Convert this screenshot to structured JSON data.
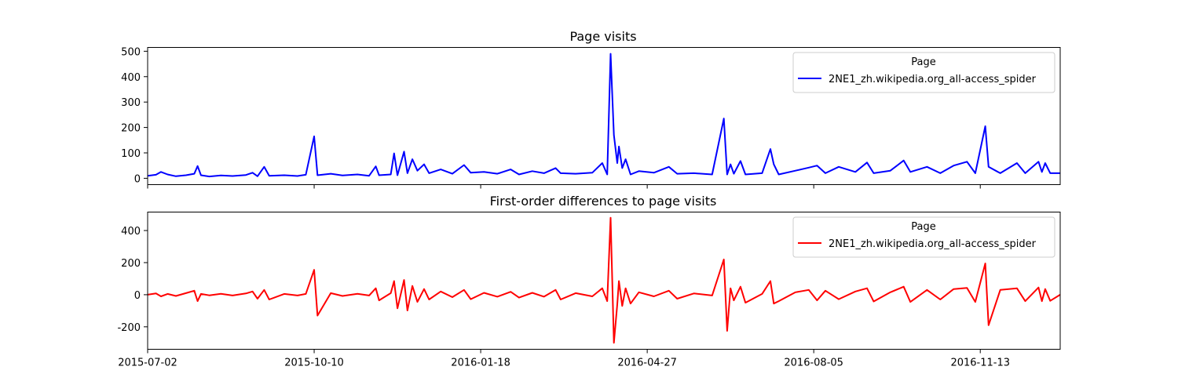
{
  "chart_data": [
    {
      "type": "line",
      "title": "Page visits",
      "x_range": [
        "2015-07-02",
        "2016-12-31"
      ],
      "ylim": [
        -25,
        515
      ],
      "yticks": [
        0,
        100,
        200,
        300,
        400,
        500
      ],
      "grid": false,
      "legend": {
        "title": "Page",
        "placement": "top-right"
      },
      "series": [
        {
          "name": "2NE1_zh.wikipedia.org_all-access_spider",
          "color": "#0000ff",
          "points": [
            [
              "2015-07-02",
              10
            ],
            [
              "2015-07-07",
              14
            ],
            [
              "2015-07-10",
              25
            ],
            [
              "2015-07-14",
              15
            ],
            [
              "2015-07-19",
              8
            ],
            [
              "2015-07-25",
              12
            ],
            [
              "2015-07-30",
              18
            ],
            [
              "2015-08-01",
              48
            ],
            [
              "2015-08-03",
              12
            ],
            [
              "2015-08-08",
              7
            ],
            [
              "2015-08-15",
              11
            ],
            [
              "2015-08-22",
              9
            ],
            [
              "2015-08-30",
              13
            ],
            [
              "2015-09-03",
              22
            ],
            [
              "2015-09-06",
              8
            ],
            [
              "2015-09-10",
              45
            ],
            [
              "2015-09-13",
              10
            ],
            [
              "2015-09-22",
              12
            ],
            [
              "2015-09-30",
              9
            ],
            [
              "2015-10-05",
              14
            ],
            [
              "2015-10-10",
              165
            ],
            [
              "2015-10-12",
              12
            ],
            [
              "2015-10-20",
              18
            ],
            [
              "2015-10-27",
              11
            ],
            [
              "2015-11-05",
              15
            ],
            [
              "2015-11-12",
              10
            ],
            [
              "2015-11-16",
              47
            ],
            [
              "2015-11-18",
              12
            ],
            [
              "2015-11-25",
              15
            ],
            [
              "2015-11-27",
              98
            ],
            [
              "2015-11-29",
              12
            ],
            [
              "2015-12-03",
              105
            ],
            [
              "2015-12-05",
              20
            ],
            [
              "2015-12-08",
              75
            ],
            [
              "2015-12-11",
              30
            ],
            [
              "2015-12-15",
              55
            ],
            [
              "2015-12-18",
              20
            ],
            [
              "2015-12-25",
              35
            ],
            [
              "2016-01-01",
              18
            ],
            [
              "2016-01-08",
              52
            ],
            [
              "2016-01-12",
              22
            ],
            [
              "2016-01-20",
              25
            ],
            [
              "2016-01-28",
              18
            ],
            [
              "2016-02-05",
              35
            ],
            [
              "2016-02-10",
              15
            ],
            [
              "2016-02-18",
              28
            ],
            [
              "2016-02-25",
              20
            ],
            [
              "2016-03-03",
              40
            ],
            [
              "2016-03-06",
              20
            ],
            [
              "2016-03-15",
              18
            ],
            [
              "2016-03-25",
              22
            ],
            [
              "2016-03-31",
              60
            ],
            [
              "2016-04-03",
              15
            ],
            [
              "2016-04-05",
              490
            ],
            [
              "2016-04-07",
              170
            ],
            [
              "2016-04-09",
              60
            ],
            [
              "2016-04-10",
              125
            ],
            [
              "2016-04-12",
              40
            ],
            [
              "2016-04-14",
              75
            ],
            [
              "2016-04-17",
              15
            ],
            [
              "2016-04-22",
              28
            ],
            [
              "2016-05-01",
              22
            ],
            [
              "2016-05-10",
              45
            ],
            [
              "2016-05-15",
              18
            ],
            [
              "2016-05-25",
              20
            ],
            [
              "2016-06-05",
              15
            ],
            [
              "2016-06-12",
              235
            ],
            [
              "2016-06-14",
              15
            ],
            [
              "2016-06-16",
              55
            ],
            [
              "2016-06-18",
              18
            ],
            [
              "2016-06-22",
              68
            ],
            [
              "2016-06-25",
              15
            ],
            [
              "2016-07-05",
              20
            ],
            [
              "2016-07-10",
              115
            ],
            [
              "2016-07-12",
              55
            ],
            [
              "2016-07-15",
              15
            ],
            [
              "2016-07-25",
              30
            ],
            [
              "2016-08-02",
              42
            ],
            [
              "2016-08-07",
              50
            ],
            [
              "2016-08-12",
              20
            ],
            [
              "2016-08-20",
              45
            ],
            [
              "2016-08-30",
              25
            ],
            [
              "2016-09-06",
              62
            ],
            [
              "2016-09-10",
              20
            ],
            [
              "2016-09-20",
              30
            ],
            [
              "2016-09-28",
              70
            ],
            [
              "2016-10-02",
              25
            ],
            [
              "2016-10-12",
              45
            ],
            [
              "2016-10-20",
              20
            ],
            [
              "2016-10-28",
              50
            ],
            [
              "2016-11-05",
              65
            ],
            [
              "2016-11-10",
              20
            ],
            [
              "2016-11-16",
              205
            ],
            [
              "2016-11-18",
              45
            ],
            [
              "2016-11-25",
              20
            ],
            [
              "2016-12-05",
              60
            ],
            [
              "2016-12-10",
              20
            ],
            [
              "2016-12-18",
              65
            ],
            [
              "2016-12-20",
              25
            ],
            [
              "2016-12-22",
              60
            ],
            [
              "2016-12-25",
              20
            ],
            [
              "2016-12-31",
              20
            ]
          ]
        }
      ]
    },
    {
      "type": "line",
      "title": "First-order differences to page visits",
      "x_range": [
        "2015-07-02",
        "2016-12-31"
      ],
      "ylim": [
        -340,
        515
      ],
      "yticks": [
        -200,
        0,
        200,
        400
      ],
      "xticks": [
        "2015-07-02",
        "2015-10-10",
        "2016-01-18",
        "2016-04-27",
        "2016-08-05",
        "2016-11-13"
      ],
      "grid": false,
      "legend": {
        "title": "Page",
        "placement": "top-right"
      },
      "series": [
        {
          "name": "2NE1_zh.wikipedia.org_all-access_spider",
          "color": "#ff0000",
          "points": [
            [
              "2015-07-02",
              0
            ],
            [
              "2015-07-07",
              8
            ],
            [
              "2015-07-10",
              -10
            ],
            [
              "2015-07-14",
              5
            ],
            [
              "2015-07-19",
              -8
            ],
            [
              "2015-07-25",
              10
            ],
            [
              "2015-07-30",
              25
            ],
            [
              "2015-08-01",
              -40
            ],
            [
              "2015-08-03",
              5
            ],
            [
              "2015-08-08",
              -4
            ],
            [
              "2015-08-15",
              6
            ],
            [
              "2015-08-22",
              -5
            ],
            [
              "2015-08-30",
              8
            ],
            [
              "2015-09-03",
              20
            ],
            [
              "2015-09-06",
              -25
            ],
            [
              "2015-09-10",
              30
            ],
            [
              "2015-09-13",
              -30
            ],
            [
              "2015-09-22",
              5
            ],
            [
              "2015-09-30",
              -5
            ],
            [
              "2015-10-05",
              5
            ],
            [
              "2015-10-10",
              155
            ],
            [
              "2015-10-12",
              -130
            ],
            [
              "2015-10-20",
              10
            ],
            [
              "2015-10-27",
              -8
            ],
            [
              "2015-11-05",
              6
            ],
            [
              "2015-11-12",
              -5
            ],
            [
              "2015-11-16",
              40
            ],
            [
              "2015-11-18",
              -35
            ],
            [
              "2015-11-25",
              10
            ],
            [
              "2015-11-27",
              85
            ],
            [
              "2015-11-29",
              -85
            ],
            [
              "2015-12-03",
              92
            ],
            [
              "2015-12-05",
              -98
            ],
            [
              "2015-12-08",
              55
            ],
            [
              "2015-12-11",
              -45
            ],
            [
              "2015-12-15",
              35
            ],
            [
              "2015-12-18",
              -30
            ],
            [
              "2015-12-25",
              20
            ],
            [
              "2016-01-01",
              -15
            ],
            [
              "2016-01-08",
              30
            ],
            [
              "2016-01-12",
              -28
            ],
            [
              "2016-01-20",
              12
            ],
            [
              "2016-01-28",
              -12
            ],
            [
              "2016-02-05",
              18
            ],
            [
              "2016-02-10",
              -18
            ],
            [
              "2016-02-18",
              12
            ],
            [
              "2016-02-25",
              -12
            ],
            [
              "2016-03-03",
              30
            ],
            [
              "2016-03-06",
              -30
            ],
            [
              "2016-03-15",
              10
            ],
            [
              "2016-03-25",
              -10
            ],
            [
              "2016-03-31",
              40
            ],
            [
              "2016-04-03",
              -40
            ],
            [
              "2016-04-05",
              480
            ],
            [
              "2016-04-07",
              -300
            ],
            [
              "2016-04-09",
              -60
            ],
            [
              "2016-04-10",
              85
            ],
            [
              "2016-04-12",
              -70
            ],
            [
              "2016-04-14",
              40
            ],
            [
              "2016-04-17",
              -55
            ],
            [
              "2016-04-22",
              15
            ],
            [
              "2016-05-01",
              -10
            ],
            [
              "2016-05-10",
              25
            ],
            [
              "2016-05-15",
              -25
            ],
            [
              "2016-05-25",
              8
            ],
            [
              "2016-06-05",
              -5
            ],
            [
              "2016-06-12",
              220
            ],
            [
              "2016-06-14",
              -225
            ],
            [
              "2016-06-16",
              40
            ],
            [
              "2016-06-18",
              -35
            ],
            [
              "2016-06-22",
              50
            ],
            [
              "2016-06-25",
              -50
            ],
            [
              "2016-07-05",
              5
            ],
            [
              "2016-07-10",
              85
            ],
            [
              "2016-07-12",
              -55
            ],
            [
              "2016-07-15",
              -40
            ],
            [
              "2016-07-25",
              15
            ],
            [
              "2016-08-02",
              30
            ],
            [
              "2016-08-07",
              -35
            ],
            [
              "2016-08-12",
              25
            ],
            [
              "2016-08-20",
              -28
            ],
            [
              "2016-08-30",
              20
            ],
            [
              "2016-09-06",
              40
            ],
            [
              "2016-09-10",
              -42
            ],
            [
              "2016-09-20",
              15
            ],
            [
              "2016-09-28",
              50
            ],
            [
              "2016-10-02",
              -45
            ],
            [
              "2016-10-12",
              30
            ],
            [
              "2016-10-20",
              -30
            ],
            [
              "2016-10-28",
              35
            ],
            [
              "2016-11-05",
              42
            ],
            [
              "2016-11-10",
              -45
            ],
            [
              "2016-11-16",
              195
            ],
            [
              "2016-11-18",
              -190
            ],
            [
              "2016-11-25",
              30
            ],
            [
              "2016-12-05",
              40
            ],
            [
              "2016-12-10",
              -40
            ],
            [
              "2016-12-18",
              45
            ],
            [
              "2016-12-20",
              -40
            ],
            [
              "2016-12-22",
              35
            ],
            [
              "2016-12-25",
              -38
            ],
            [
              "2016-12-31",
              0
            ]
          ]
        }
      ]
    }
  ]
}
